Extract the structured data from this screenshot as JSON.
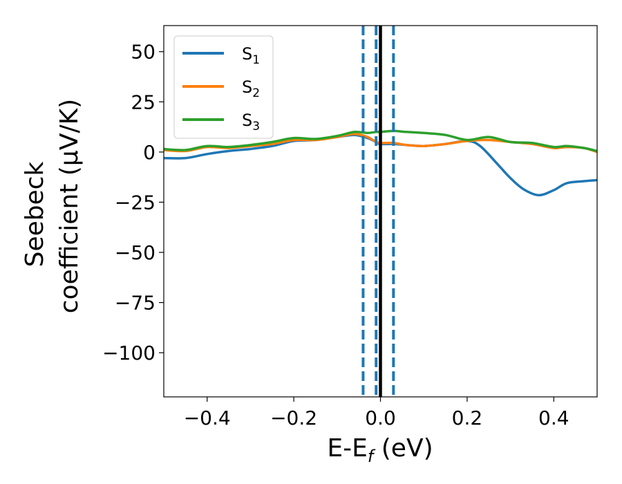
{
  "chart_data": {
    "type": "line",
    "xlabel": "E-E_f (eV)",
    "xlabel_parts": {
      "main": "E-E",
      "sub": "f",
      "unit": " (eV)"
    },
    "ylabel_line1": "Seebeck",
    "ylabel_line2": "coefficient  (μV/K)",
    "xlim": [
      -0.5,
      0.5
    ],
    "ylim": [
      -122,
      63
    ],
    "x_ticks": [
      -0.4,
      -0.2,
      0.0,
      0.2,
      0.4
    ],
    "x_tick_labels": [
      "−0.4",
      "−0.2",
      "0.0",
      "0.2",
      "0.4"
    ],
    "y_ticks": [
      50,
      25,
      0,
      -25,
      -50,
      -75,
      -100
    ],
    "y_tick_labels": [
      "50",
      "25",
      "0",
      "−25",
      "−50",
      "−75",
      "−100"
    ],
    "legend_position": "upper-left",
    "series": [
      {
        "name": "S",
        "name_sub": "1",
        "color": "#1f77b4",
        "x": [
          -0.5,
          -0.45,
          -0.4,
          -0.35,
          -0.3,
          -0.25,
          -0.2,
          -0.15,
          -0.1,
          -0.06,
          -0.03,
          -0.01,
          0.0,
          0.03,
          0.06,
          0.1,
          0.15,
          0.2,
          0.23,
          0.27,
          0.3,
          0.33,
          0.365,
          0.4,
          0.43,
          0.47,
          0.5
        ],
        "values": [
          -3,
          -3,
          -1,
          0.5,
          1.5,
          3,
          5.5,
          6,
          7.5,
          8.5,
          7,
          5,
          4,
          4,
          3.5,
          3,
          4,
          5.5,
          3,
          -6,
          -13,
          -18.5,
          -21.5,
          -19,
          -15.5,
          -14.5,
          -14
        ]
      },
      {
        "name": "S",
        "name_sub": "2",
        "color": "#ff7f0e",
        "x": [
          -0.5,
          -0.45,
          -0.4,
          -0.35,
          -0.3,
          -0.25,
          -0.2,
          -0.15,
          -0.1,
          -0.06,
          -0.03,
          -0.01,
          0.0,
          0.03,
          0.06,
          0.1,
          0.15,
          0.2,
          0.25,
          0.3,
          0.35,
          0.4,
          0.43,
          0.47,
          0.5
        ],
        "values": [
          1,
          0.5,
          2.5,
          2,
          3,
          4,
          6,
          6,
          7.5,
          9,
          7.5,
          5,
          4.5,
          4.5,
          3.5,
          3,
          4,
          5.5,
          6,
          5,
          4,
          2,
          2.5,
          2,
          0
        ]
      },
      {
        "name": "S",
        "name_sub": "3",
        "color": "#2ca02c",
        "x": [
          -0.5,
          -0.45,
          -0.4,
          -0.35,
          -0.3,
          -0.25,
          -0.2,
          -0.15,
          -0.1,
          -0.06,
          -0.03,
          -0.01,
          0.0,
          0.03,
          0.06,
          0.1,
          0.15,
          0.2,
          0.25,
          0.3,
          0.35,
          0.4,
          0.43,
          0.47,
          0.5
        ],
        "values": [
          1.5,
          1,
          3,
          2.5,
          3.5,
          5,
          7,
          6.5,
          8,
          10,
          9.5,
          10,
          10,
          10.5,
          10,
          9.5,
          8.5,
          6,
          7.5,
          5,
          4.5,
          2.5,
          3,
          2,
          0.5
        ]
      }
    ],
    "vlines": [
      {
        "x": -0.04,
        "style": "dashed",
        "color": "#1f77b4"
      },
      {
        "x": -0.01,
        "style": "dashed",
        "color": "#1f77b4"
      },
      {
        "x": 0.0,
        "style": "solid",
        "color": "#000000"
      },
      {
        "x": 0.03,
        "style": "dashed",
        "color": "#1f77b4"
      }
    ]
  }
}
